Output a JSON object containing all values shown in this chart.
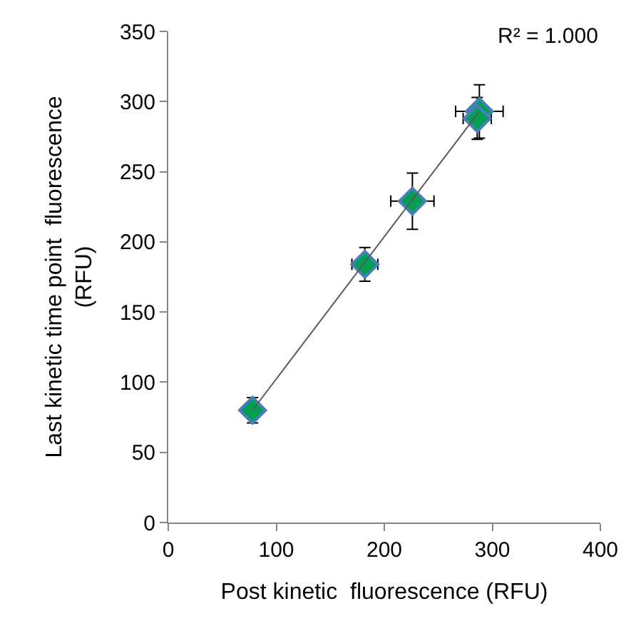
{
  "chart_data": {
    "type": "scatter",
    "xlabel": "Post kinetic  fluorescence (RFU)",
    "ylabel": "Last kinetic time point  fluorescence\n(RFU)",
    "xlim": [
      0,
      400
    ],
    "xticks": [
      0,
      100,
      200,
      300,
      400
    ],
    "ylim": [
      0,
      350
    ],
    "yticks": [
      0,
      50,
      100,
      150,
      200,
      250,
      300,
      350
    ],
    "annotations": [
      "R² = 1.000"
    ],
    "series": [
      {
        "type": "line",
        "color": "#595959",
        "x": [
          78,
          288
        ],
        "values": [
          80,
          293
        ]
      },
      {
        "color": "#00a050",
        "marker": "diamond",
        "x": [
          78,
          182,
          226,
          288,
          286
        ],
        "values": [
          80,
          184,
          229,
          293,
          288
        ],
        "errors": [
          9,
          12,
          20,
          19,
          15
        ],
        "xerrors": [
          5,
          12,
          20,
          22,
          13
        ]
      }
    ]
  }
}
